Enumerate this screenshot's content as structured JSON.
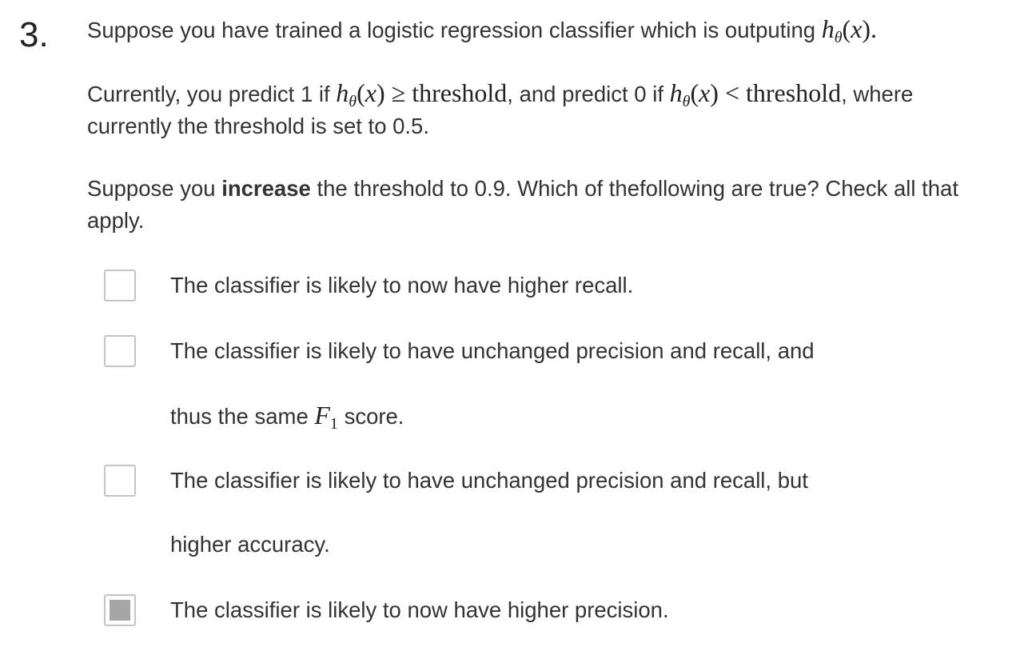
{
  "question": {
    "number": "3.",
    "intro_text": "Suppose you have trained a logistic regression classifier which is outputing",
    "intro_math": "hθ(x).",
    "para2": {
      "t1": "Currently, you predict 1 if",
      "m1": "hθ(x) ≥ threshold,",
      "t2": "and predict 0 if",
      "m2": "hθ(x) < threshold,",
      "t3": "where",
      "t4": "currently the threshold is set to 0.5."
    },
    "para3": {
      "t1": "Suppose you",
      "bold": "increase",
      "t2": "the threshold to 0.9. Which of thefollowing are true? Check all that",
      "t3": "apply."
    }
  },
  "options": [
    {
      "line1": "The classifier is likely to now have higher recall.",
      "checked": false
    },
    {
      "line1": "The classifier is likely to have unchanged precision and recall, and",
      "line2_pre": "thus the same",
      "line2_math": "F1",
      "line2_post": "score.",
      "checked": false
    },
    {
      "line1": "The classifier is likely to have unchanged precision and recall, but",
      "line2": "higher accuracy.",
      "checked": false
    },
    {
      "line1": "The classifier is likely to now have higher precision.",
      "checked": true
    }
  ]
}
